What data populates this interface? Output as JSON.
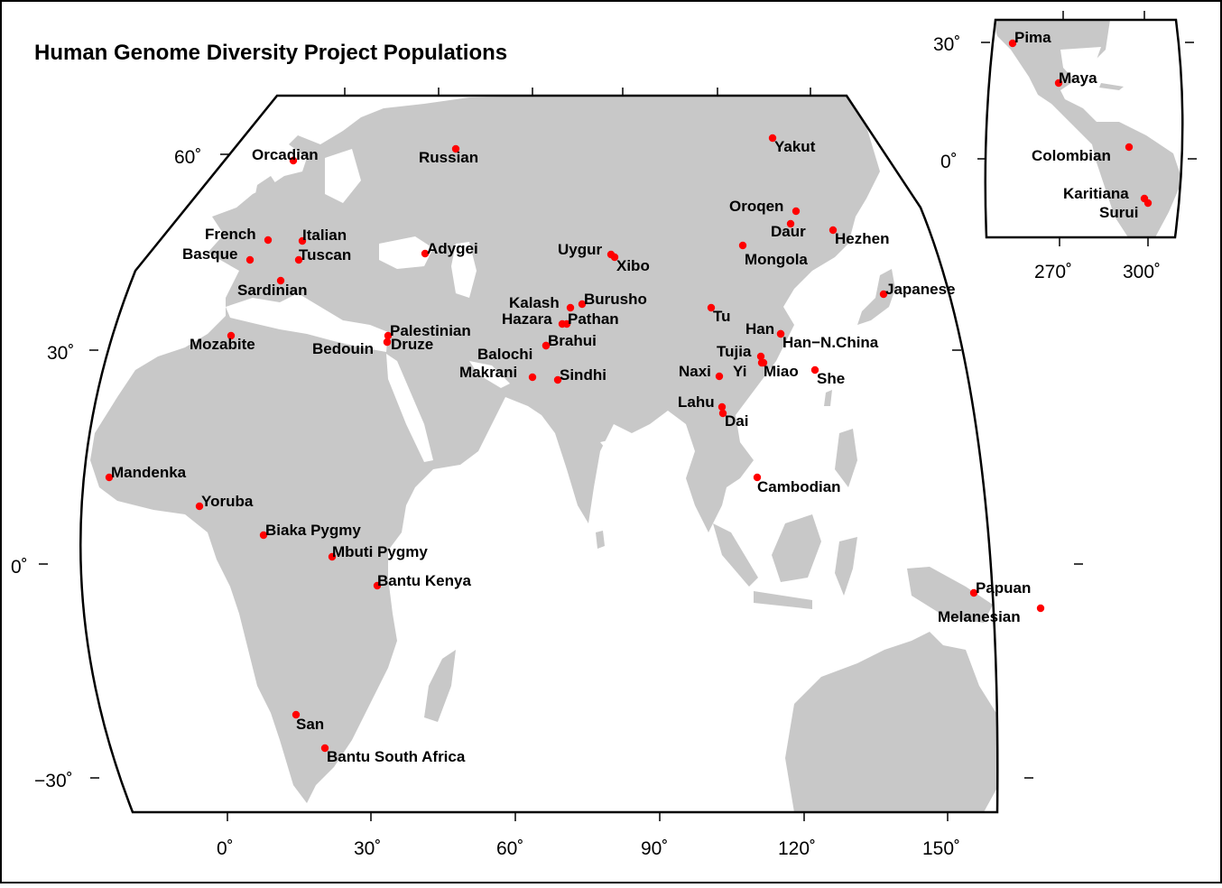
{
  "title": "Human Genome Diversity Project Populations",
  "colors": {
    "land": "#c8c8c8",
    "marker": "#ff0000",
    "frame": "#000000"
  },
  "main_map": {
    "lat_ticks": [
      {
        "text": "60˚"
      },
      {
        "text": "30˚"
      },
      {
        "text": "0˚"
      },
      {
        "text": "−30˚"
      }
    ],
    "lon_ticks": [
      {
        "text": "0˚"
      },
      {
        "text": "30˚"
      },
      {
        "text": "60˚"
      },
      {
        "text": "90˚"
      },
      {
        "text": "120˚"
      },
      {
        "text": "150˚"
      }
    ],
    "populations": [
      {
        "name": "Orcadian",
        "lon": 14,
        "lat": 59
      },
      {
        "name": "Russian",
        "lon": 47,
        "lat": 61
      },
      {
        "name": "Yakut",
        "lon": 113,
        "lat": 63
      },
      {
        "name": "French",
        "lon": 8,
        "lat": 46
      },
      {
        "name": "Italian",
        "lon": 15,
        "lat": 46
      },
      {
        "name": "Basque",
        "lon": 5,
        "lat": 43
      },
      {
        "name": "Tuscan",
        "lon": 12,
        "lat": 43
      },
      {
        "name": "Sardinian",
        "lon": 12,
        "lat": 40
      },
      {
        "name": "Adygei",
        "lon": 41,
        "lat": 44
      },
      {
        "name": "Uygur",
        "lon": 80,
        "lat": 44
      },
      {
        "name": "Xibo",
        "lon": 81,
        "lat": 43
      },
      {
        "name": "Oroqen",
        "lon": 117,
        "lat": 50
      },
      {
        "name": "Daur",
        "lon": 118,
        "lat": 48
      },
      {
        "name": "Hezhen",
        "lon": 126,
        "lat": 47
      },
      {
        "name": "Mongola",
        "lon": 107,
        "lat": 45
      },
      {
        "name": "Japanese",
        "lon": 136,
        "lat": 38
      },
      {
        "name": "Kalash",
        "lon": 71,
        "lat": 36
      },
      {
        "name": "Burusho",
        "lon": 74,
        "lat": 37
      },
      {
        "name": "Hazara",
        "lon": 70,
        "lat": 34
      },
      {
        "name": "Pathan",
        "lon": 71,
        "lat": 34
      },
      {
        "name": "Tu",
        "lon": 101,
        "lat": 36
      },
      {
        "name": "Palestinian",
        "lon": 35,
        "lat": 32
      },
      {
        "name": "Druze",
        "lon": 35,
        "lat": 32
      },
      {
        "name": "Bedouin",
        "lon": 34,
        "lat": 31
      },
      {
        "name": "Mozabite",
        "lon": 3,
        "lat": 32
      },
      {
        "name": "Brahui",
        "lon": 66,
        "lat": 30
      },
      {
        "name": "Balochi",
        "lon": 66,
        "lat": 29
      },
      {
        "name": "Han",
        "lon": 116,
        "lat": 32
      },
      {
        "name": "Han−N.China",
        "lon": 116,
        "lat": 31
      },
      {
        "name": "Tujia",
        "lon": 109,
        "lat": 29
      },
      {
        "name": "Yi",
        "lon": 103,
        "lat": 28
      },
      {
        "name": "Naxi",
        "lon": 100,
        "lat": 27
      },
      {
        "name": "Miao",
        "lon": 108,
        "lat": 28
      },
      {
        "name": "She",
        "lon": 119,
        "lat": 27
      },
      {
        "name": "Makrani",
        "lon": 64,
        "lat": 26
      },
      {
        "name": "Sindhi",
        "lon": 69,
        "lat": 26
      },
      {
        "name": "Lahu",
        "lon": 100,
        "lat": 22
      },
      {
        "name": "Dai",
        "lon": 100,
        "lat": 21
      },
      {
        "name": "Cambodian",
        "lon": 105,
        "lat": 12
      },
      {
        "name": "Mandenka",
        "lon": -12,
        "lat": 12
      },
      {
        "name": "Yoruba",
        "lon": 5,
        "lat": 8
      },
      {
        "name": "Biaka Pygmy",
        "lon": 17,
        "lat": 4
      },
      {
        "name": "Mbuti Pygmy",
        "lon": 29,
        "lat": 1
      },
      {
        "name": "Bantu Kenya",
        "lon": 37,
        "lat": -3
      },
      {
        "name": "Papuan",
        "lon": 143,
        "lat": -4
      },
      {
        "name": "Melanesian",
        "lon": 155,
        "lat": -6
      },
      {
        "name": "San",
        "lon": 20,
        "lat": -21
      },
      {
        "name": "Bantu South Africa",
        "lon": 26,
        "lat": -26
      }
    ]
  },
  "inset_map": {
    "lat_ticks": [
      {
        "text": "30˚"
      },
      {
        "text": "0˚"
      }
    ],
    "lon_ticks": [
      {
        "text": "270˚"
      },
      {
        "text": "300˚"
      }
    ],
    "populations": [
      {
        "name": "Pima",
        "lon": 252,
        "lat": 29
      },
      {
        "name": "Maya",
        "lon": 269,
        "lat": 19
      },
      {
        "name": "Colombian",
        "lon": 284,
        "lat": 3
      },
      {
        "name": "Karitiana",
        "lon": 297,
        "lat": -10
      },
      {
        "name": "Surui",
        "lon": 298,
        "lat": -11
      }
    ]
  }
}
